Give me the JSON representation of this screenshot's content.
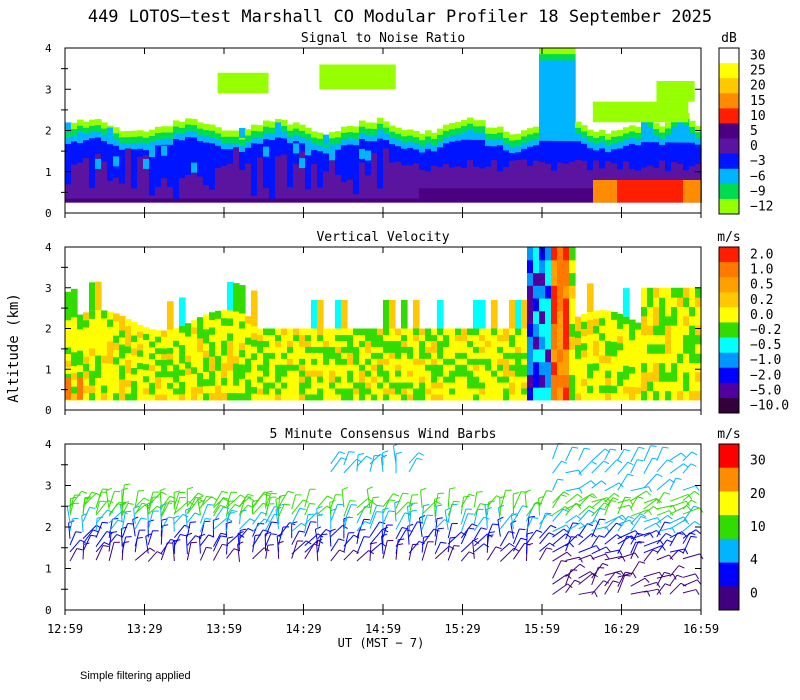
{
  "figure": {
    "title": "449 LOTOS—test Marshall CO Modular Profiler 18 September 2025",
    "ylabel": "Altitude (km)",
    "xlabel": "UT  (MST − 7)",
    "footnote": "Simple filtering applied"
  },
  "chart_data": [
    {
      "type": "heatmap",
      "title": "Signal to Noise Ratio",
      "xlabel": "UT  (MST − 7)",
      "ylabel": "Altitude (km)",
      "x_ticks": [
        "12:59",
        "13:29",
        "13:59",
        "14:29",
        "14:59",
        "15:29",
        "15:59",
        "16:29",
        "16:59"
      ],
      "y_ticks": [
        "0",
        "1",
        "2",
        "3",
        "4"
      ],
      "xlim": [
        "12:59",
        "16:59"
      ],
      "ylim": [
        0,
        4
      ],
      "colorbar": {
        "unit": "dB",
        "labels": [
          "30",
          "25",
          "20",
          "15",
          "10",
          "5",
          "0",
          "−3",
          "−6",
          "−9",
          "−12"
        ],
        "colors": [
          "#ffffff",
          "#ffff00",
          "#ffc800",
          "#ff8c00",
          "#ff1e00",
          "#4b0082",
          "#5a14a0",
          "#0014ff",
          "#00b4ff",
          "#00dc50",
          "#96ff00"
        ]
      },
      "approx_profile": [
        {
          "time": "12:59",
          "signal_top_km": 2.1
        },
        {
          "time": "13:29",
          "signal_top_km": 2.2
        },
        {
          "time": "13:59",
          "signal_top_km": 2.1
        },
        {
          "time": "14:29",
          "signal_top_km": 2.0
        },
        {
          "time": "14:59",
          "signal_top_km": 2.1
        },
        {
          "time": "15:29",
          "signal_top_km": 2.0
        },
        {
          "time": "15:59",
          "signal_top_km": 2.0
        },
        {
          "time": "16:29",
          "signal_top_km": 2.1
        },
        {
          "time": "16:59",
          "signal_top_km": 2.5
        }
      ]
    },
    {
      "type": "heatmap",
      "title": "Vertical Velocity",
      "xlabel": "UT  (MST − 7)",
      "ylabel": "Altitude (km)",
      "x_ticks": [
        "12:59",
        "13:29",
        "13:59",
        "14:29",
        "14:59",
        "15:29",
        "15:59",
        "16:29",
        "16:59"
      ],
      "y_ticks": [
        "0",
        "1",
        "2",
        "3",
        "4"
      ],
      "xlim": [
        "12:59",
        "16:59"
      ],
      "ylim": [
        0,
        4
      ],
      "colorbar": {
        "unit": "m/s",
        "labels": [
          "2.0",
          "1.0",
          "0.5",
          "0.2",
          "0.0",
          "−0.2",
          "−0.5",
          "−1.0",
          "−2.0",
          "−5.0",
          "−10.0"
        ],
        "colors": [
          "#ff1e00",
          "#ff7800",
          "#ffa000",
          "#ffc800",
          "#ffff00",
          "#32dc00",
          "#00ffff",
          "#0096ff",
          "#0000ff",
          "#5000a0",
          "#32003c"
        ]
      }
    },
    {
      "type": "scatter",
      "title": "5 Minute Consensus Wind Barbs",
      "xlabel": "UT  (MST − 7)",
      "ylabel": "Altitude (km)",
      "x_ticks": [
        "12:59",
        "13:29",
        "13:59",
        "14:29",
        "14:59",
        "15:29",
        "15:59",
        "16:29",
        "16:59"
      ],
      "y_ticks": [
        "0",
        "1",
        "2",
        "3",
        "4"
      ],
      "xlim": [
        "12:59",
        "16:59"
      ],
      "ylim": [
        0,
        4
      ],
      "colorbar": {
        "unit": "m/s",
        "labels": [
          "30",
          "20",
          "10",
          "4",
          "0"
        ],
        "colors": [
          "#ff0000",
          "#ff8c00",
          "#ffff00",
          "#32dc00",
          "#00b4ff",
          "#0000ff",
          "#400080"
        ]
      }
    }
  ]
}
